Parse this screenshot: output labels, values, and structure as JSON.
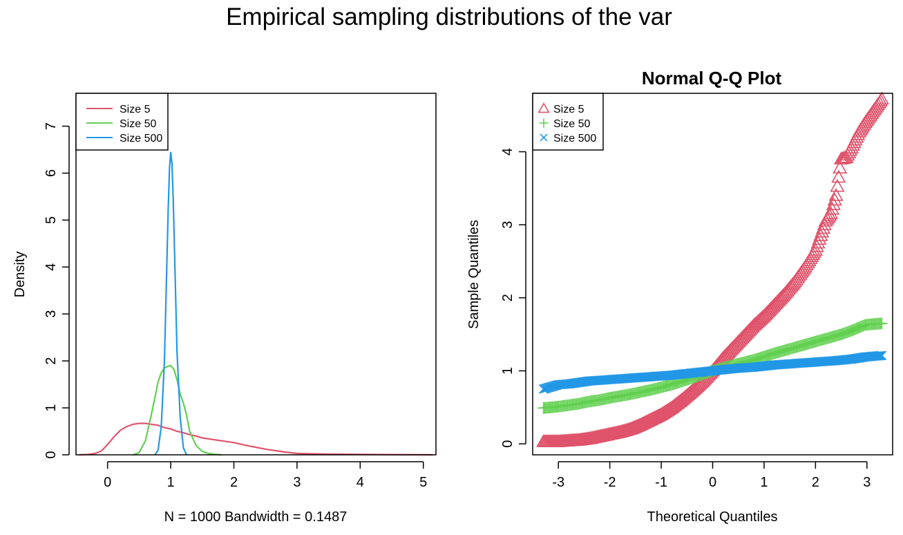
{
  "page_title": "Empirical sampling distributions of the var",
  "colors": {
    "size5": "#DF536B",
    "size50": "#61D04F",
    "size500": "#2297E6",
    "axis": "#000000"
  },
  "chart_data": [
    {
      "type": "line",
      "title": "",
      "xlabel": "N = 1000   Bandwidth = 0.1487",
      "ylabel": "Density",
      "xlim": [
        -0.5,
        5.2
      ],
      "ylim": [
        0,
        7.7
      ],
      "xticks": [
        0,
        1,
        2,
        3,
        4,
        5
      ],
      "yticks": [
        0,
        1,
        2,
        3,
        4,
        5,
        6,
        7
      ],
      "legend": {
        "position": "top-left",
        "entries": [
          "Size 5",
          "Size 50",
          "Size 500"
        ]
      },
      "grid": false,
      "series": [
        {
          "name": "Size 5",
          "color": "#DF536B",
          "x": [
            -0.45,
            -0.3,
            -0.2,
            -0.1,
            0.0,
            0.1,
            0.2,
            0.3,
            0.4,
            0.5,
            0.6,
            0.7,
            0.8,
            0.9,
            1.0,
            1.1,
            1.2,
            1.3,
            1.4,
            1.5,
            1.7,
            2.0,
            2.2,
            2.5,
            2.8,
            3.0,
            3.5,
            4.0,
            4.5,
            5.0,
            5.15
          ],
          "y": [
            0.0,
            0.01,
            0.03,
            0.08,
            0.22,
            0.38,
            0.52,
            0.6,
            0.65,
            0.67,
            0.67,
            0.65,
            0.63,
            0.58,
            0.55,
            0.5,
            0.47,
            0.43,
            0.4,
            0.36,
            0.32,
            0.26,
            0.2,
            0.12,
            0.06,
            0.03,
            0.015,
            0.01,
            0.005,
            0.002,
            0.0
          ]
        },
        {
          "name": "Size 50",
          "color": "#61D04F",
          "x": [
            0.4,
            0.5,
            0.6,
            0.7,
            0.8,
            0.85,
            0.9,
            0.95,
            1.0,
            1.05,
            1.1,
            1.15,
            1.2,
            1.25,
            1.3,
            1.4,
            1.5,
            1.6,
            1.7,
            1.8
          ],
          "y": [
            0.0,
            0.05,
            0.3,
            0.9,
            1.55,
            1.75,
            1.85,
            1.88,
            1.9,
            1.82,
            1.6,
            1.3,
            1.1,
            0.85,
            0.5,
            0.2,
            0.07,
            0.03,
            0.01,
            0.0
          ]
        },
        {
          "name": "Size 500",
          "color": "#2297E6",
          "x": [
            0.75,
            0.8,
            0.85,
            0.9,
            0.93,
            0.96,
            0.98,
            1.0,
            1.02,
            1.04,
            1.07,
            1.1,
            1.15,
            1.2,
            1.25
          ],
          "y": [
            0.0,
            0.1,
            0.6,
            2.0,
            3.6,
            5.2,
            6.1,
            6.45,
            6.2,
            5.4,
            3.8,
            2.2,
            0.8,
            0.15,
            0.0
          ]
        }
      ]
    },
    {
      "type": "scatter",
      "title": "Normal Q-Q Plot",
      "xlabel": "Theoretical Quantiles",
      "ylabel": "Sample Quantiles",
      "xlim": [
        -3.5,
        3.5
      ],
      "ylim": [
        -0.15,
        4.8
      ],
      "xticks": [
        -3,
        -2,
        -1,
        0,
        1,
        2,
        3
      ],
      "yticks": [
        0,
        1,
        2,
        3,
        4
      ],
      "legend": {
        "position": "top-left",
        "entries": [
          "Size 5",
          "Size 50",
          "Size 500"
        ]
      },
      "grid": false,
      "series": [
        {
          "name": "Size 5",
          "marker": "triangle",
          "color": "#DF536B",
          "x": [
            -3.29,
            -3.0,
            -2.8,
            -2.6,
            -2.4,
            -2.2,
            -2.0,
            -1.8,
            -1.6,
            -1.4,
            -1.2,
            -1.0,
            -0.8,
            -0.6,
            -0.4,
            -0.2,
            0.0,
            0.2,
            0.4,
            0.6,
            0.8,
            1.0,
            1.2,
            1.4,
            1.6,
            1.8,
            2.0,
            2.1,
            2.2,
            2.3,
            2.4,
            2.5,
            2.6,
            2.7,
            2.85,
            2.97,
            3.29
          ],
          "y": [
            0.03,
            0.03,
            0.04,
            0.05,
            0.07,
            0.1,
            0.13,
            0.16,
            0.2,
            0.26,
            0.33,
            0.4,
            0.49,
            0.6,
            0.72,
            0.85,
            1.0,
            1.17,
            1.32,
            1.47,
            1.62,
            1.75,
            1.9,
            2.05,
            2.22,
            2.42,
            2.65,
            2.85,
            3.05,
            3.15,
            3.4,
            3.9,
            3.92,
            4.05,
            4.27,
            4.4,
            4.72
          ]
        },
        {
          "name": "Size 50",
          "marker": "plus",
          "color": "#61D04F",
          "x": [
            -3.29,
            -3.0,
            -2.8,
            -2.6,
            -2.4,
            -2.2,
            -2.0,
            -1.6,
            -1.2,
            -0.8,
            -0.4,
            0.0,
            0.4,
            0.8,
            1.2,
            1.6,
            2.0,
            2.3,
            2.5,
            2.7,
            2.97,
            3.29
          ],
          "y": [
            0.49,
            0.51,
            0.53,
            0.55,
            0.58,
            0.6,
            0.63,
            0.68,
            0.74,
            0.81,
            0.9,
            1.0,
            1.08,
            1.15,
            1.24,
            1.32,
            1.4,
            1.46,
            1.5,
            1.55,
            1.63,
            1.65
          ]
        },
        {
          "name": "Size 500",
          "marker": "cross",
          "color": "#2297E6",
          "x": [
            -3.29,
            -3.0,
            -2.8,
            -2.6,
            -2.4,
            -2.0,
            -1.6,
            -1.2,
            -0.8,
            -0.4,
            0.0,
            0.4,
            0.8,
            1.2,
            1.6,
            2.0,
            2.4,
            2.7,
            2.97,
            3.29
          ],
          "y": [
            0.75,
            0.81,
            0.82,
            0.84,
            0.86,
            0.88,
            0.9,
            0.92,
            0.94,
            0.97,
            1.0,
            1.03,
            1.05,
            1.08,
            1.1,
            1.12,
            1.14,
            1.16,
            1.19,
            1.21
          ]
        }
      ]
    }
  ]
}
